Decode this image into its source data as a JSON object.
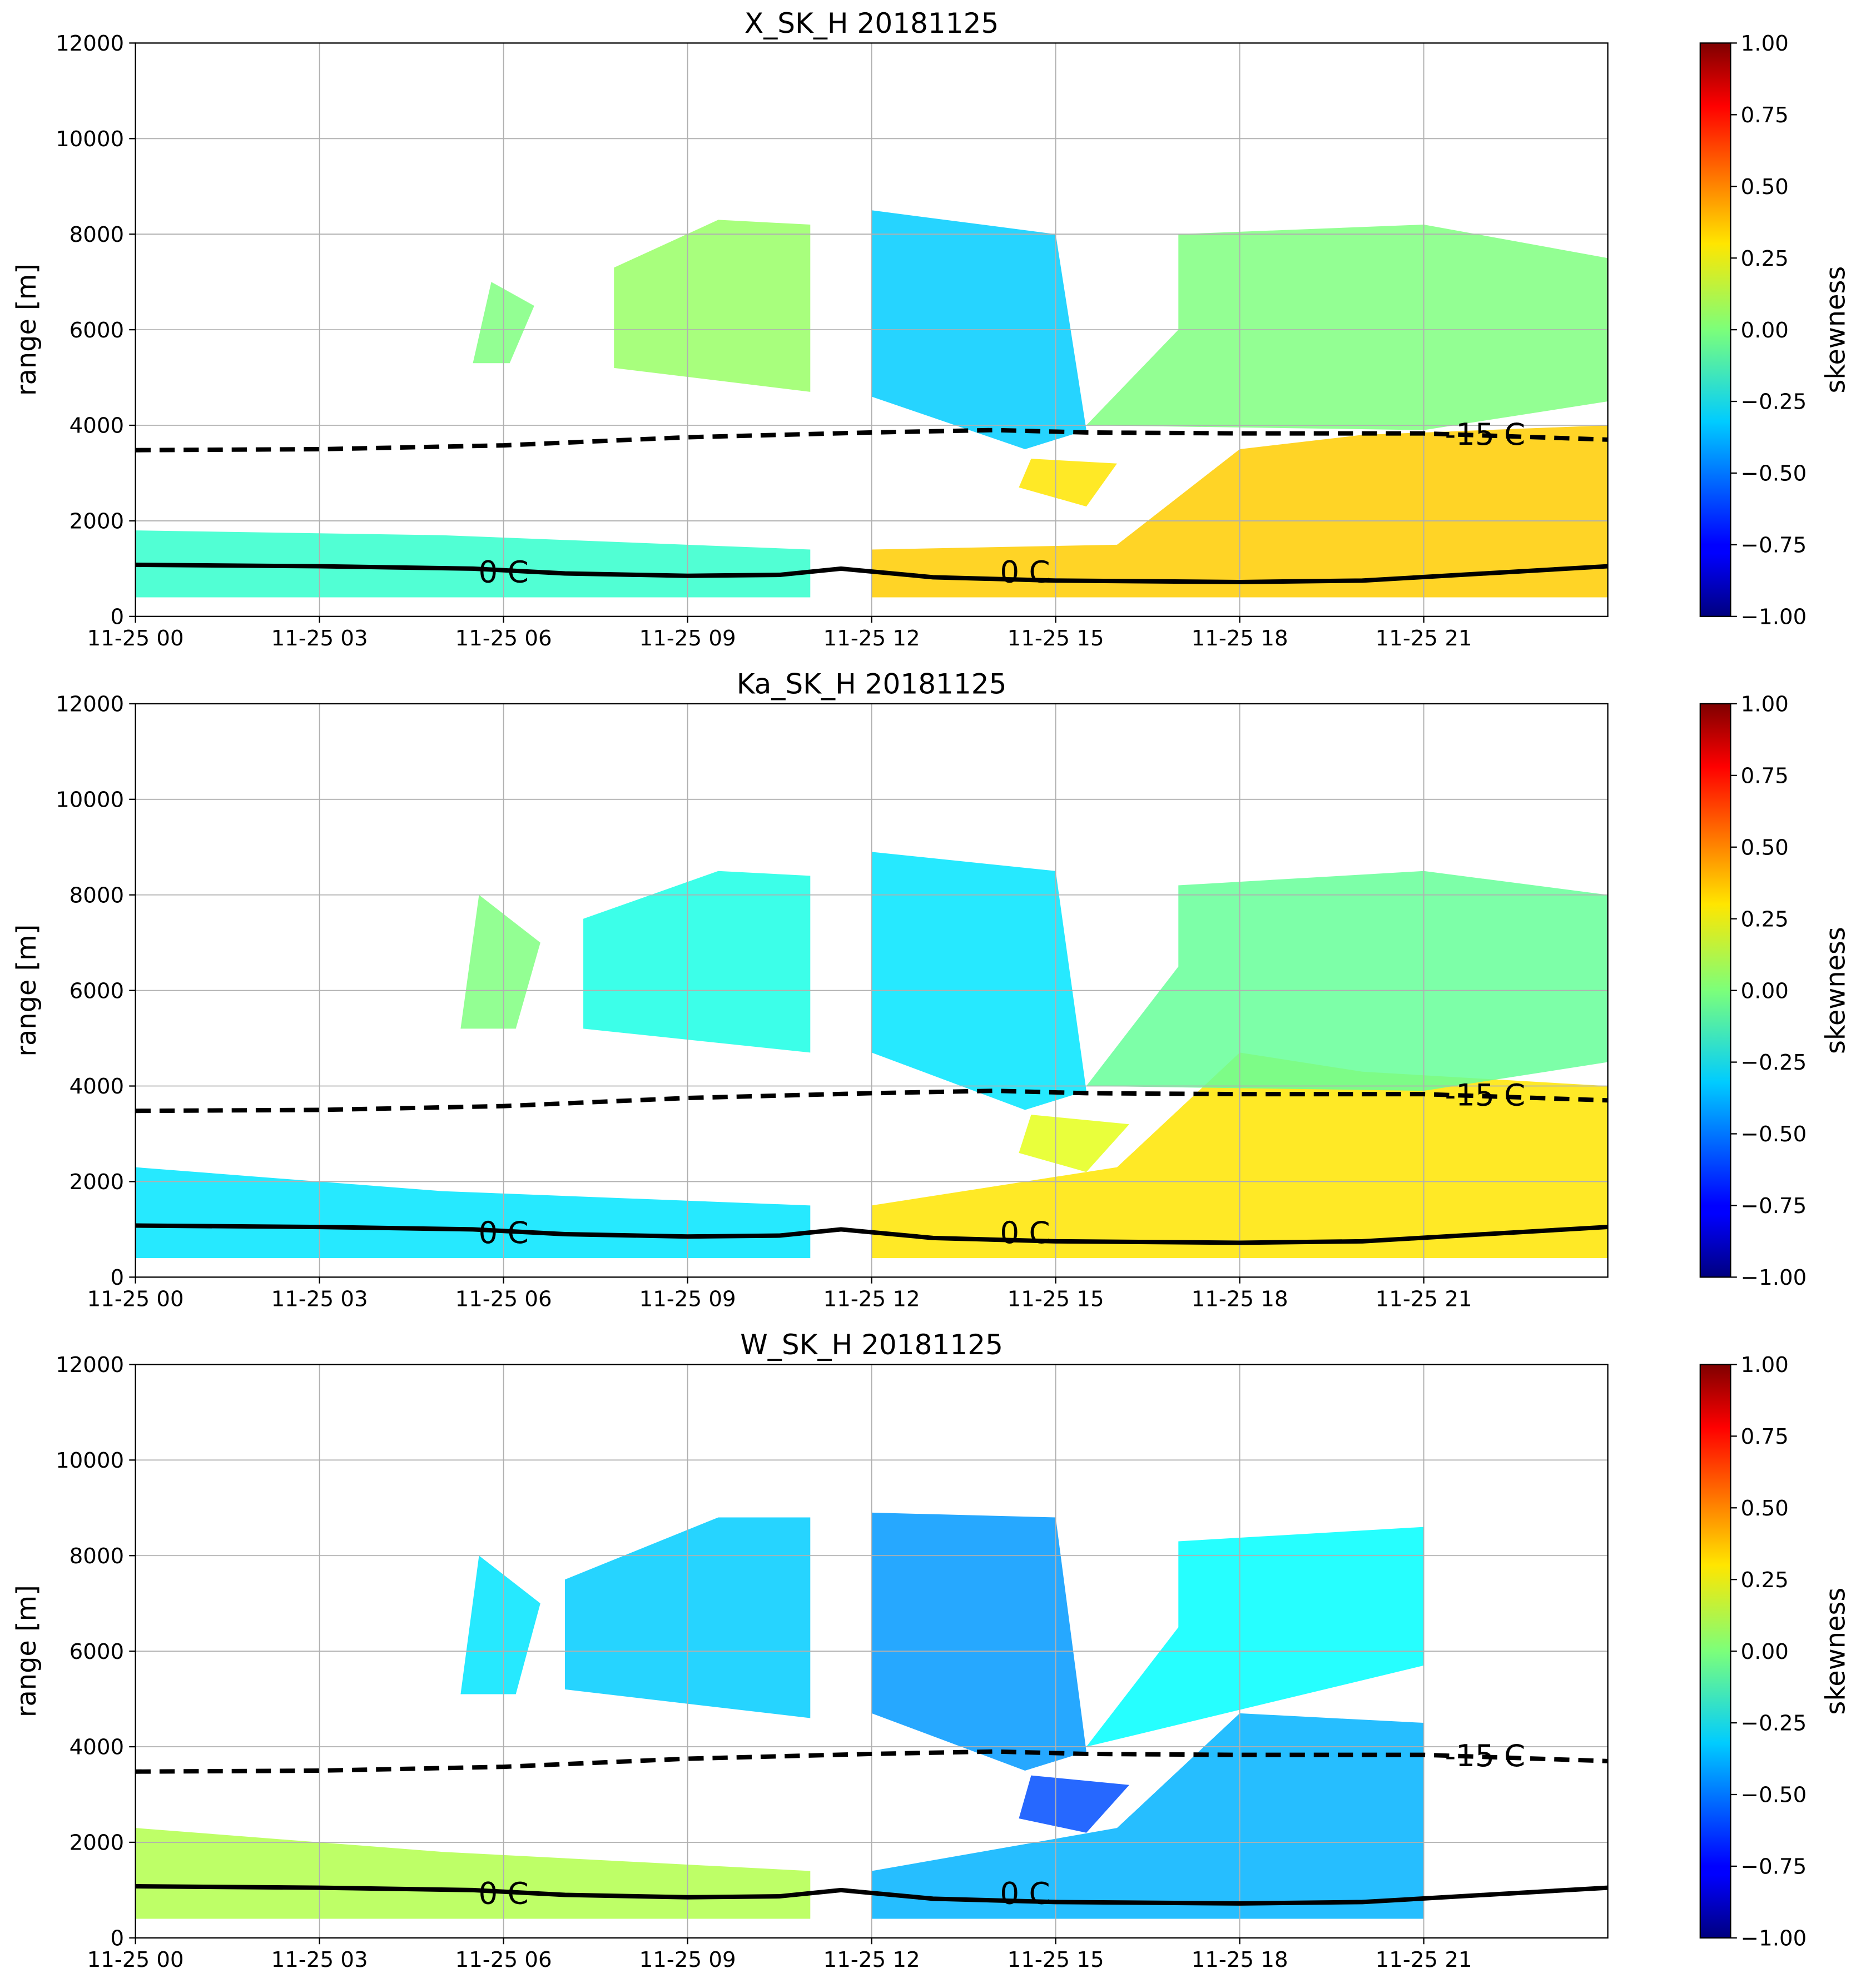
{
  "chart_data": [
    {
      "type": "heatmap",
      "title": "X_SK_H 20181125",
      "ylabel": "range [m]",
      "colorbar_label": "skewness",
      "colormap": "jet",
      "xlim": [
        0,
        24
      ],
      "ylim": [
        0,
        12000
      ],
      "clim": [
        -1,
        1
      ],
      "grid": true,
      "xticks": [
        {
          "value": 0,
          "label": "11-25 00"
        },
        {
          "value": 3,
          "label": "11-25 03"
        },
        {
          "value": 6,
          "label": "11-25 06"
        },
        {
          "value": 9,
          "label": "11-25 09"
        },
        {
          "value": 12,
          "label": "11-25 12"
        },
        {
          "value": 15,
          "label": "11-25 15"
        },
        {
          "value": 18,
          "label": "11-25 18"
        },
        {
          "value": 21,
          "label": "11-25 21"
        }
      ],
      "yticks": [
        0,
        2000,
        4000,
        6000,
        8000,
        10000,
        12000
      ],
      "cticks": [
        {
          "value": -1,
          "label": "−1.00"
        },
        {
          "value": -0.75,
          "label": "−0.75"
        },
        {
          "value": -0.5,
          "label": "−0.50"
        },
        {
          "value": -0.25,
          "label": "−0.25"
        },
        {
          "value": 0,
          "label": "0.00"
        },
        0.25,
        {
          "value": 0.5,
          "label": "0.50"
        },
        0.75,
        {
          "value": 1,
          "label": "1.00"
        }
      ],
      "regions": [
        {
          "time": [
            0,
            11,
            11,
            5,
            0
          ],
          "range": [
            400,
            400,
            1400,
            1700,
            1800
          ],
          "skewness": -0.15
        },
        {
          "time": [
            12,
            24,
            24,
            20,
            18,
            16,
            12
          ],
          "range": [
            400,
            400,
            4000,
            3800,
            3500,
            1500,
            1400
          ],
          "skewness": 0.35
        },
        {
          "time": [
            7.8,
            11,
            11,
            9.5,
            7.8
          ],
          "range": [
            5200,
            4700,
            8200,
            8300,
            7300
          ],
          "skewness": 0.05
        },
        {
          "time": [
            12,
            14.5,
            15.5,
            15,
            12
          ],
          "range": [
            4600,
            3500,
            3900,
            8000,
            8500
          ],
          "skewness": -0.35
        },
        {
          "time": [
            15.5,
            21,
            24,
            24,
            21,
            17,
            17
          ],
          "range": [
            4000,
            3900,
            4500,
            7500,
            8200,
            8000,
            6000
          ],
          "skewness": 0
        },
        {
          "time": [
            5.5,
            6.1,
            6.5,
            5.8
          ],
          "range": [
            5300,
            5300,
            6500,
            7000
          ],
          "skewness": 0
        },
        {
          "time": [
            14.4,
            15.5,
            16,
            14.6
          ],
          "range": [
            2700,
            2300,
            3200,
            3300
          ],
          "skewness": 0.3
        }
      ],
      "series": [
        {
          "name": "-15 C",
          "color": "#000000",
          "style": "dashed",
          "x": [
            0,
            3,
            6,
            9,
            12,
            14,
            15.5,
            18,
            21,
            24
          ],
          "values": [
            3480,
            3500,
            3580,
            3750,
            3850,
            3900,
            3850,
            3830,
            3830,
            3700
          ]
        },
        {
          "name": "0 C",
          "color": "#000000",
          "style": "solid",
          "x": [
            0,
            3,
            5.5,
            7,
            9,
            10.5,
            11.5,
            13,
            15,
            18,
            20,
            22,
            24
          ],
          "values": [
            1080,
            1050,
            1000,
            900,
            850,
            870,
            1000,
            820,
            750,
            720,
            750,
            900,
            1050
          ]
        }
      ]
    },
    {
      "type": "heatmap",
      "title": "Ka_SK_H 20181125",
      "ylabel": "range [m]",
      "colorbar_label": "skewness",
      "colormap": "jet",
      "xlim": [
        0,
        24
      ],
      "ylim": [
        0,
        12000
      ],
      "clim": [
        -1,
        1
      ],
      "grid": true,
      "xticks": [
        {
          "value": 0,
          "label": "11-25 00"
        },
        {
          "value": 3,
          "label": "11-25 03"
        },
        {
          "value": 6,
          "label": "11-25 06"
        },
        {
          "value": 9,
          "label": "11-25 09"
        },
        {
          "value": 12,
          "label": "11-25 12"
        },
        {
          "value": 15,
          "label": "11-25 15"
        },
        {
          "value": 18,
          "label": "11-25 18"
        },
        {
          "value": 21,
          "label": "11-25 21"
        }
      ],
      "yticks": [
        0,
        2000,
        4000,
        6000,
        8000,
        10000,
        12000
      ],
      "cticks": [
        {
          "value": -1,
          "label": "−1.00"
        },
        {
          "value": -0.75,
          "label": "−0.75"
        },
        {
          "value": -0.5,
          "label": "−0.50"
        },
        {
          "value": -0.25,
          "label": "−0.25"
        },
        {
          "value": 0,
          "label": "0.00"
        },
        0.25,
        {
          "value": 0.5,
          "label": "0.50"
        },
        0.75,
        {
          "value": 1,
          "label": "1.00"
        }
      ],
      "regions": [
        {
          "time": [
            0,
            11,
            11,
            5,
            0
          ],
          "range": [
            400,
            400,
            1500,
            1800,
            2300
          ],
          "skewness": -0.3
        },
        {
          "time": [
            12,
            24,
            24,
            20,
            18,
            16,
            12
          ],
          "range": [
            400,
            400,
            4000,
            4300,
            4700,
            2300,
            1500
          ],
          "skewness": 0.3
        },
        {
          "time": [
            7.3,
            11,
            11,
            9.5,
            7.3
          ],
          "range": [
            5200,
            4700,
            8400,
            8500,
            7500
          ],
          "skewness": -0.2
        },
        {
          "time": [
            12,
            14.5,
            15.5,
            15,
            12
          ],
          "range": [
            4700,
            3500,
            3900,
            8500,
            8900
          ],
          "skewness": -0.3
        },
        {
          "time": [
            15.5,
            21,
            24,
            24,
            21,
            17,
            17
          ],
          "range": [
            4000,
            3900,
            4500,
            8000,
            8500,
            8200,
            6500
          ],
          "skewness": -0.05
        },
        {
          "time": [
            5.3,
            6.2,
            6.6,
            5.6
          ],
          "range": [
            5200,
            5200,
            7000,
            8000
          ],
          "skewness": 0
        },
        {
          "time": [
            14.4,
            15.5,
            16.2,
            14.6
          ],
          "range": [
            2600,
            2200,
            3200,
            3400
          ],
          "skewness": 0.2
        }
      ],
      "series": [
        {
          "name": "-15 C",
          "color": "#000000",
          "style": "dashed",
          "x": [
            0,
            3,
            6,
            9,
            12,
            14,
            15.5,
            18,
            21,
            24
          ],
          "values": [
            3480,
            3500,
            3580,
            3750,
            3850,
            3900,
            3850,
            3830,
            3830,
            3700
          ]
        },
        {
          "name": "0 C",
          "color": "#000000",
          "style": "solid",
          "x": [
            0,
            3,
            5.5,
            7,
            9,
            10.5,
            11.5,
            13,
            15,
            18,
            20,
            22,
            24
          ],
          "values": [
            1080,
            1050,
            1000,
            900,
            850,
            870,
            1000,
            820,
            750,
            720,
            750,
            900,
            1050
          ]
        }
      ]
    },
    {
      "type": "heatmap",
      "title": "W_SK_H 20181125",
      "ylabel": "range [m]",
      "colorbar_label": "skewness",
      "colormap": "jet",
      "xlim": [
        0,
        24
      ],
      "ylim": [
        0,
        12000
      ],
      "clim": [
        -1,
        1
      ],
      "grid": true,
      "xticks": [
        {
          "value": 0,
          "label": "11-25 00"
        },
        {
          "value": 3,
          "label": "11-25 03"
        },
        {
          "value": 6,
          "label": "11-25 06"
        },
        {
          "value": 9,
          "label": "11-25 09"
        },
        {
          "value": 12,
          "label": "11-25 12"
        },
        {
          "value": 15,
          "label": "11-25 15"
        },
        {
          "value": 18,
          "label": "11-25 18"
        },
        {
          "value": 21,
          "label": "11-25 21"
        }
      ],
      "yticks": [
        0,
        2000,
        4000,
        6000,
        8000,
        10000,
        12000
      ],
      "cticks": [
        {
          "value": -1,
          "label": "−1.00"
        },
        {
          "value": -0.75,
          "label": "−0.75"
        },
        {
          "value": -0.5,
          "label": "−0.50"
        },
        {
          "value": -0.25,
          "label": "−0.25"
        },
        {
          "value": 0,
          "label": "0.00"
        },
        0.25,
        {
          "value": 0.5,
          "label": "0.50"
        },
        0.75,
        {
          "value": 1,
          "label": "1.00"
        }
      ],
      "regions": [
        {
          "time": [
            0,
            11,
            11,
            5,
            0
          ],
          "range": [
            400,
            400,
            1400,
            1800,
            2300
          ],
          "skewness": 0.1
        },
        {
          "time": [
            12,
            21,
            21,
            18,
            16,
            12
          ],
          "range": [
            400,
            400,
            4500,
            4700,
            2300,
            1400
          ],
          "skewness": -0.4
        },
        {
          "time": [
            7,
            11,
            11,
            9.5,
            7
          ],
          "range": [
            5200,
            4600,
            8800,
            8800,
            7500
          ],
          "skewness": -0.35
        },
        {
          "time": [
            12,
            14.5,
            15.5,
            15,
            12
          ],
          "range": [
            4700,
            3500,
            3900,
            8800,
            8900
          ],
          "skewness": -0.45
        },
        {
          "time": [
            15.5,
            21,
            21,
            17,
            17
          ],
          "range": [
            4000,
            5700,
            8600,
            8300,
            6500
          ],
          "skewness": -0.25
        },
        {
          "time": [
            5.3,
            6.2,
            6.6,
            5.6
          ],
          "range": [
            5100,
            5100,
            7000,
            8000
          ],
          "skewness": -0.3
        },
        {
          "time": [
            14.4,
            15.5,
            16.2,
            14.6
          ],
          "range": [
            2500,
            2200,
            3200,
            3400
          ],
          "skewness": -0.6
        }
      ],
      "series": [
        {
          "name": "-15 C",
          "color": "#000000",
          "style": "dashed",
          "x": [
            0,
            3,
            6,
            9,
            12,
            14,
            15.5,
            18,
            21,
            24
          ],
          "values": [
            3480,
            3500,
            3580,
            3750,
            3850,
            3900,
            3850,
            3830,
            3830,
            3700
          ]
        },
        {
          "name": "0 C",
          "color": "#000000",
          "style": "solid",
          "x": [
            0,
            3,
            5.5,
            7,
            9,
            10.5,
            11.5,
            13,
            15,
            18,
            20,
            22,
            24
          ],
          "values": [
            1080,
            1050,
            1000,
            900,
            850,
            870,
            1000,
            820,
            750,
            720,
            750,
            900,
            1050
          ]
        }
      ]
    }
  ]
}
